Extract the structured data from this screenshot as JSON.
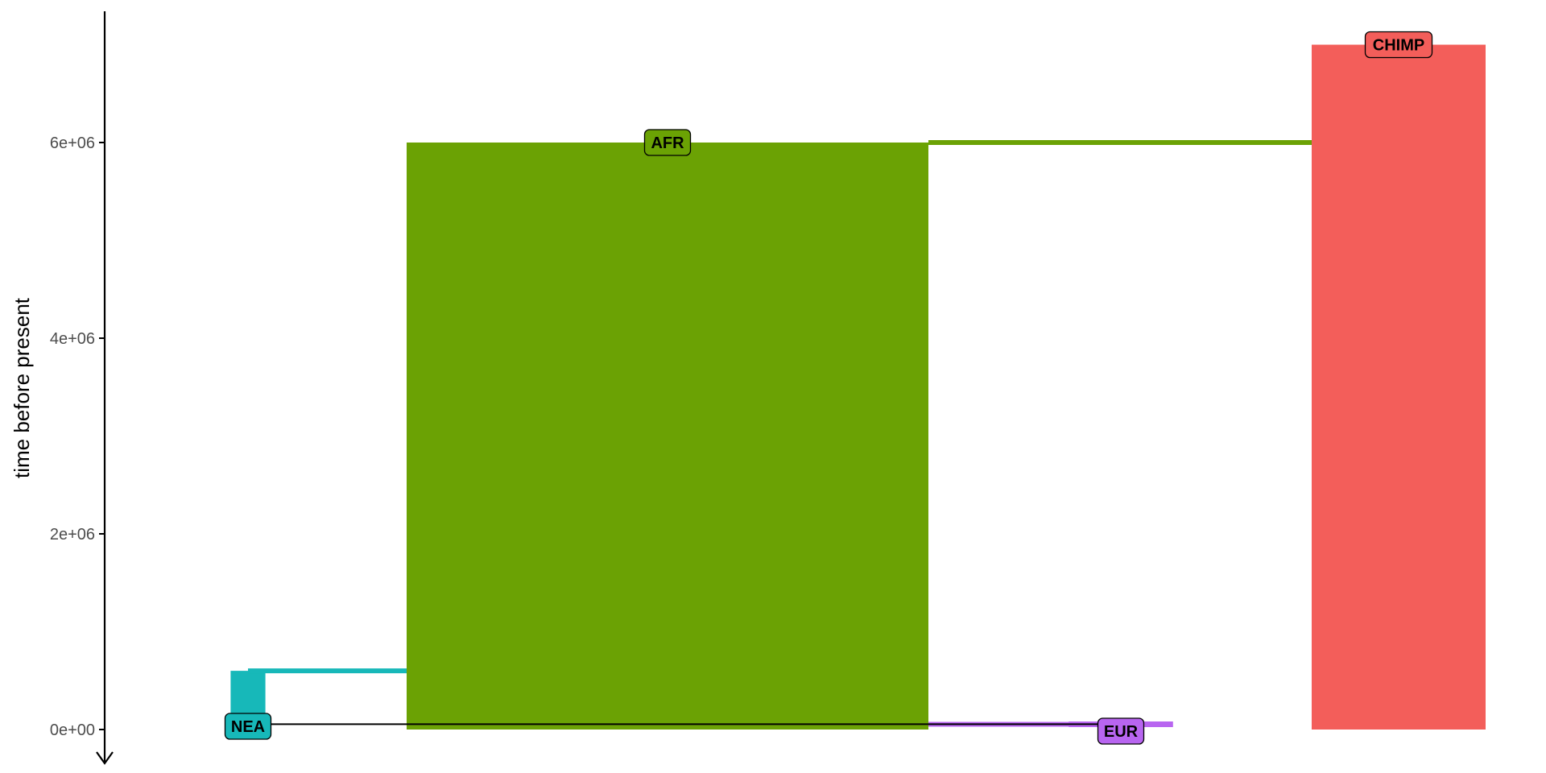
{
  "chart_data": {
    "type": "demographic-model",
    "ylabel": "time before present",
    "ylim": [
      0,
      7300000
    ],
    "y_ticks": [
      {
        "value": 0,
        "label": "0e+00"
      },
      {
        "value": 2000000,
        "label": "2e+06"
      },
      {
        "value": 4000000,
        "label": "4e+06"
      },
      {
        "value": 6000000,
        "label": "6e+06"
      }
    ],
    "y_inverted_arrow": true,
    "populations": [
      {
        "name": "CHIMP",
        "color": "#F35E5A",
        "start": 7000000,
        "end": 0,
        "ne_relative": 1.0
      },
      {
        "name": "AFR",
        "color": "#6BA204",
        "start": 6000000,
        "end": 0,
        "ne_relative": 3.0,
        "parent": "CHIMP"
      },
      {
        "name": "NEA",
        "color": "#17B8B9",
        "start": 600000,
        "end": 40000,
        "ne_relative": 0.2,
        "parent": "AFR"
      },
      {
        "name": "EUR",
        "color": "#B865F0",
        "start": 70000,
        "end": 0,
        "ne_relative": 0.6,
        "parent": "AFR"
      }
    ],
    "gene_flow": [
      {
        "from": "NEA",
        "to": "EUR",
        "time": 55000
      }
    ],
    "grid": false,
    "legend": "none"
  }
}
